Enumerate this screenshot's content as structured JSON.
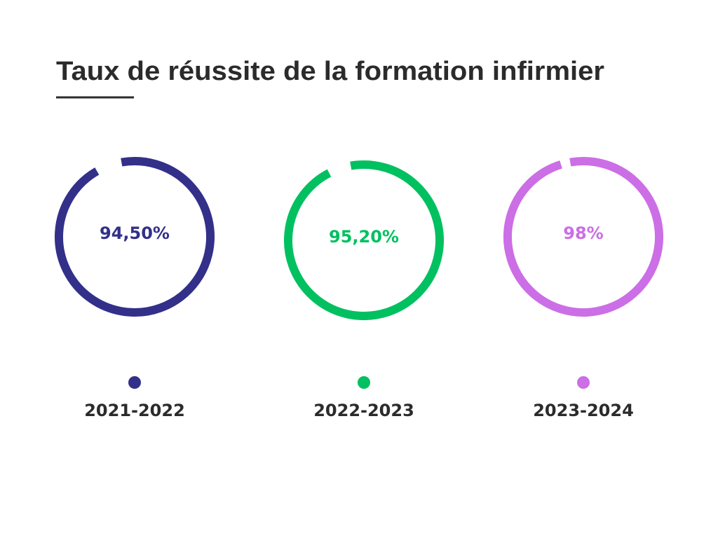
{
  "chart_data": {
    "type": "donut",
    "title": "Taux de réussite de la formation infirmier",
    "categories": [
      "2021-2022",
      "2022-2023",
      "2023-2024"
    ],
    "values": [
      94.5,
      95.2,
      98
    ],
    "value_labels": [
      "94,50%",
      "95,20%",
      "98%"
    ],
    "colors": [
      "#33308a",
      "#00c060",
      "#cc6ee6"
    ]
  }
}
